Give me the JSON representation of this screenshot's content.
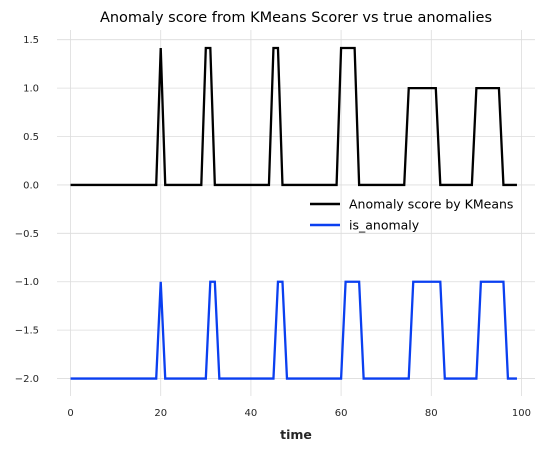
{
  "chart_data": {
    "type": "line",
    "title": "Anomaly score from KMeans Scorer vs true anomalies",
    "xlabel": "time",
    "ylabel": "",
    "xlim": [
      -3,
      103
    ],
    "ylim": [
      -2.18,
      1.6
    ],
    "x_ticks": [
      0,
      20,
      40,
      60,
      80,
      100
    ],
    "x_tick_labels": [
      "0",
      "20",
      "40",
      "60",
      "80",
      "100"
    ],
    "y_ticks": [
      1.5,
      1.0,
      0.5,
      0.0,
      -0.5,
      -1.0,
      -1.5,
      -2.0
    ],
    "y_tick_labels": [
      "1.5",
      "1.0",
      "0.5",
      "0.0",
      "−0.5",
      "−1.0",
      "−1.5",
      "−2.0"
    ],
    "grid": true,
    "legend_position": "center-right",
    "series": [
      {
        "name": "Anomaly score by KMeans",
        "color": "#000000",
        "x": [
          0,
          19,
          20,
          21,
          29,
          30,
          31,
          32,
          44,
          45,
          46,
          47,
          59,
          60,
          61,
          62,
          63,
          64,
          74,
          75,
          76,
          77,
          78,
          79,
          80,
          81,
          82,
          89,
          90,
          91,
          92,
          93,
          94,
          95,
          96,
          99
        ],
        "y": [
          0,
          0,
          1.414,
          0,
          0,
          1.414,
          1.414,
          0,
          0,
          1.414,
          1.414,
          0,
          0,
          1.414,
          1.414,
          1.414,
          1.414,
          0,
          0,
          1.0,
          1.0,
          1.0,
          1.0,
          1.0,
          1.0,
          1.0,
          0,
          0,
          1.0,
          1.0,
          1.0,
          1.0,
          1.0,
          1.0,
          0,
          0
        ]
      },
      {
        "name": "is_anomaly",
        "color": "#0a3ff0",
        "x": [
          0,
          19,
          20,
          21,
          30,
          31,
          32,
          33,
          45,
          46,
          47,
          48,
          60,
          61,
          62,
          63,
          64,
          65,
          75,
          76,
          77,
          78,
          79,
          80,
          81,
          82,
          83,
          90,
          91,
          92,
          93,
          94,
          95,
          96,
          97,
          99
        ],
        "y": [
          -2,
          -2,
          -1,
          -2,
          -2,
          -1,
          -1,
          -2,
          -2,
          -1,
          -1,
          -2,
          -2,
          -1,
          -1,
          -1,
          -1,
          -2,
          -2,
          -1,
          -1,
          -1,
          -1,
          -1,
          -1,
          -1,
          -2,
          -2,
          -1,
          -1,
          -1,
          -1,
          -1,
          -1,
          -2,
          -2
        ]
      }
    ]
  }
}
